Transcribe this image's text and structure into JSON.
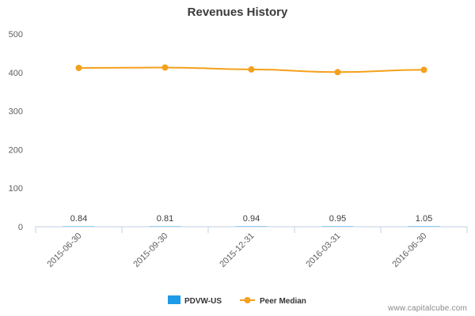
{
  "chart_data": {
    "type": "line",
    "title": "Revenues History",
    "categories": [
      "2015-06-30",
      "2015-09-30",
      "2015-12-31",
      "2016-03-31",
      "2016-06-30"
    ],
    "bar_labels": [
      "0.84",
      "0.81",
      "0.94",
      "0.95",
      "1.05"
    ],
    "series": [
      {
        "name": "PDVW-US",
        "kind": "bar",
        "color": "#1e9be8",
        "values": [
          0.84,
          0.81,
          0.94,
          0.95,
          1.05
        ]
      },
      {
        "name": "Peer Median",
        "kind": "line",
        "color": "#f5a01a",
        "values": [
          412,
          413,
          408,
          401,
          407
        ]
      }
    ],
    "y_ticks": [
      0,
      100,
      200,
      300,
      400,
      500
    ],
    "ylim": [
      0,
      500
    ],
    "legend_position": "bottom-center",
    "grid": false
  },
  "credit": "www.capitalcube.com"
}
